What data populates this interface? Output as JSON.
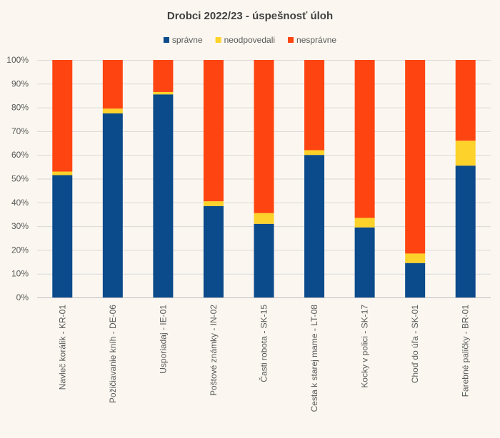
{
  "chart_data": {
    "type": "bar",
    "stacked": true,
    "title": "Drobci 2022/23 - úspešnosť úloh",
    "xlabel": "",
    "ylabel": "",
    "ylim": [
      0,
      100
    ],
    "yticks": [
      "0%",
      "10%",
      "20%",
      "30%",
      "40%",
      "50%",
      "60%",
      "70%",
      "80%",
      "90%",
      "100%"
    ],
    "legend_position": "top",
    "grid": true,
    "categories": [
      "Navleč korálik - KR-01",
      "Požičiavanie kníh - DE-06",
      "Usporiadaj - IE-01",
      "Poštové známky - IN-02",
      "Časti robota - SK-15",
      "Cesta k starej mame - LT-08",
      "Kocky v polici - SK-17",
      "Choď do úľa - SK-01",
      "Farebné paličky - BR-01"
    ],
    "series": [
      {
        "name": "správne",
        "color": "#0b4a8b",
        "values": [
          51.5,
          77.5,
          85.5,
          38.5,
          31,
          60,
          29.5,
          14.5,
          55.5
        ]
      },
      {
        "name": "neodpovedali",
        "color": "#fdd22a",
        "values": [
          1.5,
          2,
          1,
          2,
          4.5,
          2,
          4,
          4,
          10.5
        ]
      },
      {
        "name": "nesprávne",
        "color": "#fe4511",
        "values": [
          47,
          20.5,
          13.5,
          59.5,
          64.5,
          38,
          66.5,
          81.5,
          34
        ]
      }
    ]
  }
}
